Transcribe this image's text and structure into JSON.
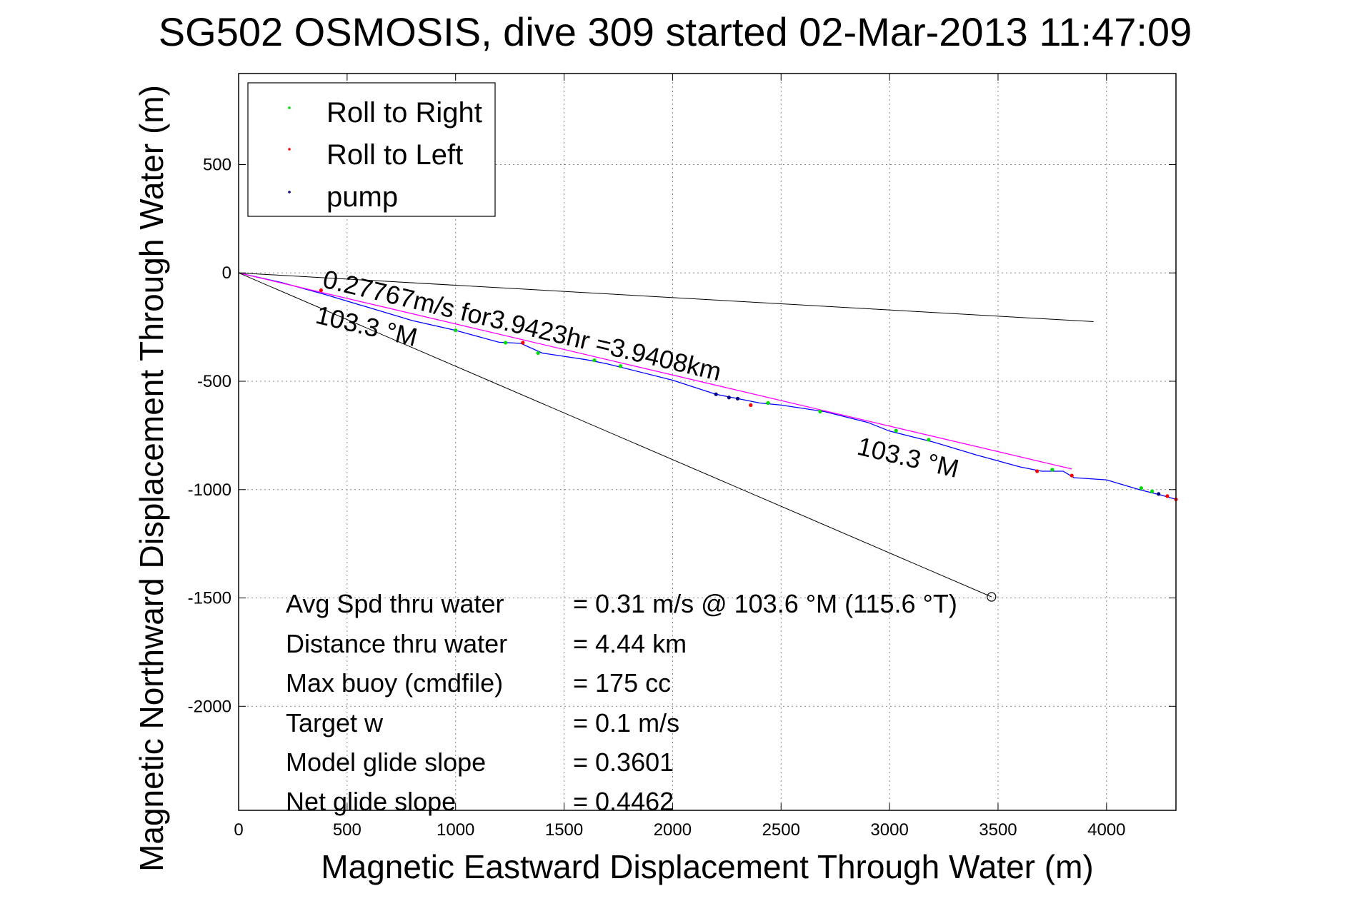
{
  "chart_data": {
    "type": "line",
    "title": "SG502 OSMOSIS, dive 309 started 02-Mar-2013 11:47:09",
    "xlabel": "Magnetic Eastward Displacement Through Water (m)",
    "ylabel": "Magnetic Northward Displacement Through Water (m)",
    "xlim": [
      0,
      4320
    ],
    "ylim": [
      -2480,
      920
    ],
    "x_ticks": [
      0,
      500,
      1000,
      1500,
      2000,
      2500,
      3000,
      3500,
      4000
    ],
    "y_ticks": [
      500,
      0,
      -500,
      -1000,
      -1500,
      -2000
    ],
    "grid": true,
    "legend_position": "top-left",
    "legend": [
      {
        "label": "Roll to Right",
        "color": "#00dd00"
      },
      {
        "label": "Roll to Left",
        "color": "#ff0000"
      },
      {
        "label": "pump",
        "color": "#000080"
      }
    ],
    "series": [
      {
        "kind": "track",
        "color": "#0000ff",
        "x": [
          0,
          200,
          400,
          600,
          800,
          1000,
          1200,
          1300,
          1400,
          1500,
          1600,
          1700,
          1800,
          2000,
          2200,
          2300,
          2400,
          2500,
          2700,
          2900,
          3000,
          3200,
          3400,
          3600,
          3700,
          3800,
          3850,
          4000,
          4150,
          4250,
          4320
        ],
        "y": [
          0,
          -45,
          -100,
          -160,
          -220,
          -265,
          -320,
          -325,
          -370,
          -385,
          -400,
          -420,
          -445,
          -495,
          -560,
          -580,
          -600,
          -610,
          -640,
          -690,
          -730,
          -780,
          -840,
          -895,
          -915,
          -915,
          -945,
          -955,
          -1000,
          -1025,
          -1045
        ]
      },
      {
        "kind": "track",
        "color": "#ff00ff",
        "x": [
          0,
          3840
        ],
        "y": [
          0,
          -905
        ]
      },
      {
        "kind": "reference-line",
        "color": "#000000",
        "x": [
          0,
          3940
        ],
        "y": [
          0,
          -225
        ]
      },
      {
        "kind": "reference-line",
        "color": "#000000",
        "x": [
          0,
          3470
        ],
        "y": [
          0,
          -1495
        ]
      },
      {
        "name": "Roll to Right",
        "kind": "markers",
        "color": "#00dd00",
        "x": [
          1000,
          1230,
          1380,
          1640,
          1760,
          2440,
          2680,
          3030,
          3180,
          3750,
          4160,
          4210
        ],
        "y": [
          -265,
          -322,
          -370,
          -403,
          -430,
          -600,
          -640,
          -728,
          -770,
          -908,
          -993,
          -1008
        ]
      },
      {
        "name": "Roll to Left",
        "kind": "markers",
        "color": "#ff0000",
        "x": [
          380,
          1310,
          2360,
          3680,
          3840,
          4280,
          4320
        ],
        "y": [
          -80,
          -322,
          -610,
          -915,
          -935,
          -1030,
          -1045
        ]
      },
      {
        "name": "pump",
        "kind": "markers",
        "color": "#000080",
        "x": [
          2200,
          2260,
          2300,
          4240
        ],
        "y": [
          -560,
          -575,
          -580,
          -1020
        ]
      }
    ],
    "annotations": {
      "speed_text": "0.27767m/s for3.9423hr =3.9408km",
      "heading_1": "103.3 °M",
      "heading_2": "103.3 °M",
      "end_circle": {
        "x": 3470,
        "y": -1495
      }
    },
    "stats": [
      {
        "label": "Avg Spd thru water",
        "value": "=  0.31 m/s @ 103.6 °M (115.6 °T)"
      },
      {
        "label": "Distance thru water",
        "value": "=  4.44 km"
      },
      {
        "label": "Max buoy (cmdfile)",
        "value": "= 175 cc"
      },
      {
        "label": "Target w",
        "value": "= 0.1 m/s"
      },
      {
        "label": "Model glide slope",
        "value": "= 0.3601"
      },
      {
        "label": "Net glide slope",
        "value": "= 0.4462"
      }
    ]
  }
}
